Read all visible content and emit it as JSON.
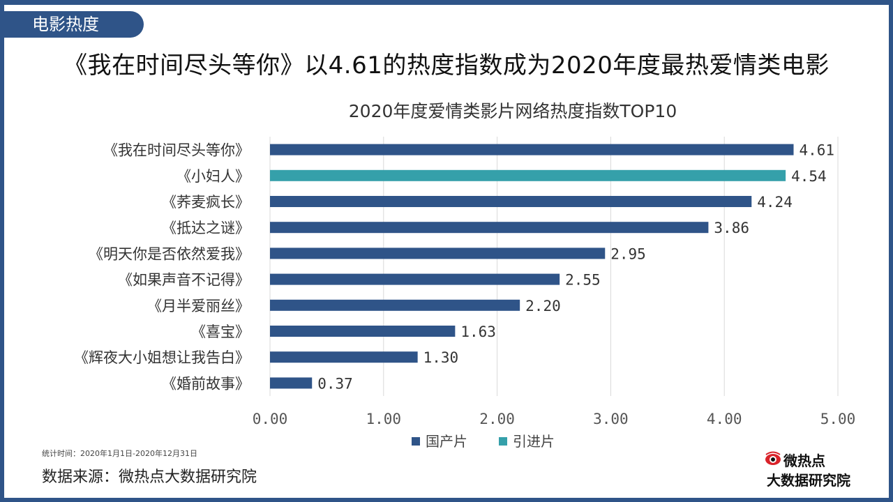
{
  "section_tag": "电影热度",
  "headline": "《我在时间尽头等你》以4.61的热度指数成为2020年度最热爱情类电影",
  "colors": {
    "domestic": "#2f5488",
    "imported": "#35a0aa",
    "border": "#2f5488"
  },
  "chart_data": {
    "type": "bar",
    "orientation": "horizontal",
    "title": "2020年度爱情类影片网络热度指数TOP10",
    "categories": [
      "《我在时间尽头等你》",
      "《小妇人》",
      "《荞麦疯长》",
      "《抵达之谜》",
      "《明天你是否依然爱我》",
      "《如果声音不记得》",
      "《月半爱丽丝》",
      "《喜宝》",
      "《辉夜大小姐想让我告白》",
      "《婚前故事》"
    ],
    "values": [
      4.61,
      4.54,
      4.24,
      3.86,
      2.95,
      2.55,
      2.2,
      1.63,
      1.3,
      0.37
    ],
    "value_labels": [
      "4.61",
      "4.54",
      "4.24",
      "3.86",
      "2.95",
      "2.55",
      "2.20",
      "1.63",
      "1.30",
      "0.37"
    ],
    "groups": [
      "国产片",
      "引进片",
      "国产片",
      "国产片",
      "国产片",
      "国产片",
      "国产片",
      "国产片",
      "国产片",
      "国产片"
    ],
    "xlim": [
      0,
      5
    ],
    "xticks": [
      "0.00",
      "1.00",
      "2.00",
      "3.00",
      "4.00",
      "5.00"
    ],
    "legend": [
      {
        "name": "国产片",
        "color": "#2f5488"
      },
      {
        "name": "引进片",
        "color": "#35a0aa"
      }
    ],
    "legend_position": "bottom",
    "grid": true
  },
  "footer": {
    "stat_period": "统计时间：2020年1月1日-2020年12月31日",
    "source": "数据来源：微热点大数据研究院",
    "logo_top": "微热点",
    "logo_bottom": "大数据研究院"
  }
}
